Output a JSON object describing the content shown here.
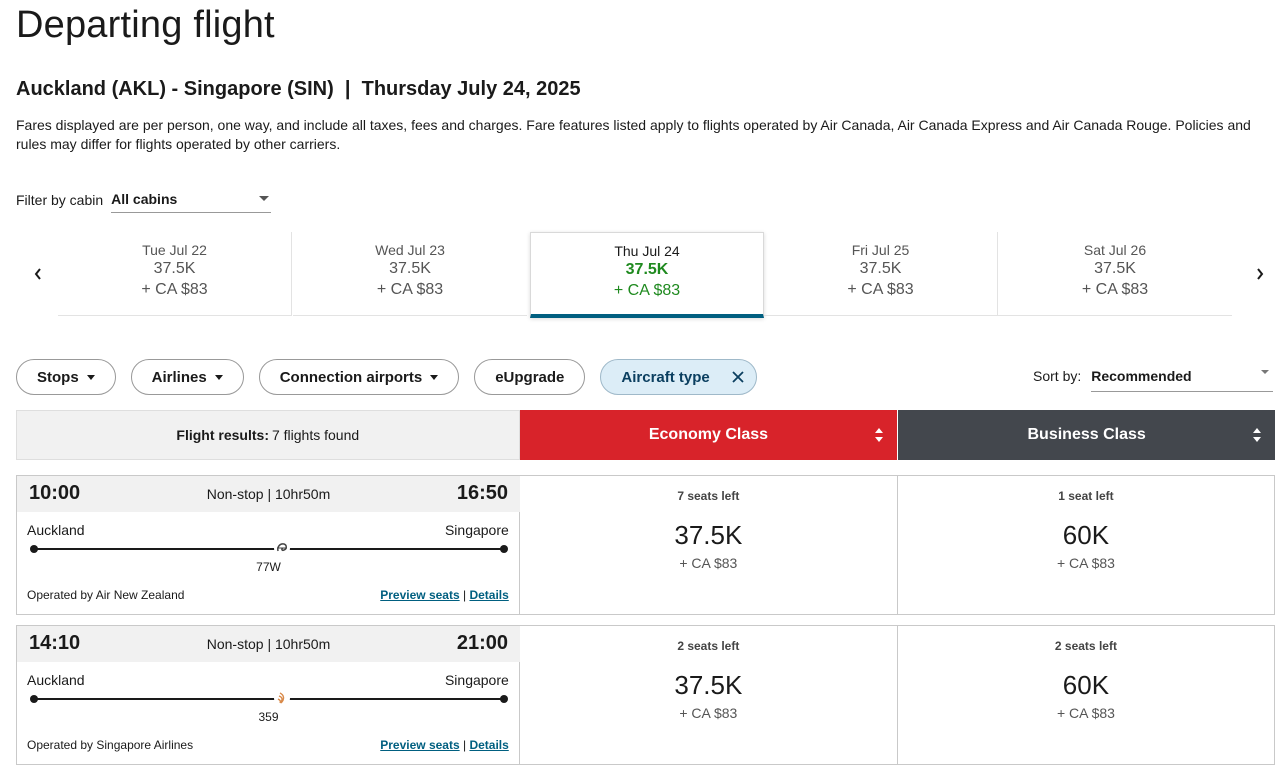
{
  "page": {
    "title": "Departing flight",
    "route": "Auckland (AKL) - Singapore (SIN)  |  Thursday July 24, 2025",
    "disclaimer": "Fares displayed are per person, one way, and include all taxes, fees and charges. Fare features listed apply to flights operated by Air Canada, Air Canada Express and Air Canada Rouge. Policies and rules may differ for flights operated by other carriers."
  },
  "cabin_filter": {
    "label": "Filter by cabin",
    "value": "All cabins"
  },
  "dates": [
    {
      "date": "Tue Jul 22",
      "points": "37.5K",
      "cash": "+ CA $83"
    },
    {
      "date": "Wed Jul 23",
      "points": "37.5K",
      "cash": "+ CA $83"
    },
    {
      "date": "Thu Jul 24",
      "points": "37.5K",
      "cash": "+ CA $83",
      "selected": true
    },
    {
      "date": "Fri Jul 25",
      "points": "37.5K",
      "cash": "+ CA $83"
    },
    {
      "date": "Sat Jul 26",
      "points": "37.5K",
      "cash": "+ CA $83"
    }
  ],
  "filters": {
    "stops": "Stops",
    "airlines": "Airlines",
    "connection_airports": "Connection airports",
    "eupgrade": "eUpgrade",
    "aircraft_type": "Aircraft type"
  },
  "sort": {
    "label": "Sort by:",
    "value": "Recommended"
  },
  "results": {
    "label": "Flight results:",
    "count": "7 flights found",
    "economy_label": "Economy Class",
    "business_label": "Business Class",
    "colors": {
      "economy": "#d8232a",
      "business": "#43474d",
      "accent": "#005f80",
      "selected_price": "#1f8a1f"
    }
  },
  "flights": [
    {
      "depart_time": "10:00",
      "duration": "Non-stop | 10hr50m",
      "arrive_time": "16:50",
      "origin": "Auckland",
      "destination": "Singapore",
      "aircraft": "77W",
      "airline_icon": "air-new-zealand-icon",
      "operated_by": "Operated by Air New Zealand",
      "preview_seats": "Preview seats",
      "details": "Details",
      "economy": {
        "seats": "7 seats left",
        "points": "37.5K",
        "cash": "+ CA $83"
      },
      "business": {
        "seats": "1 seat left",
        "points": "60K",
        "cash": "+ CA $83"
      }
    },
    {
      "depart_time": "14:10",
      "duration": "Non-stop | 10hr50m",
      "arrive_time": "21:00",
      "origin": "Auckland",
      "destination": "Singapore",
      "aircraft": "359",
      "airline_icon": "singapore-airlines-icon",
      "operated_by": "Operated by Singapore Airlines",
      "preview_seats": "Preview seats",
      "details": "Details",
      "economy": {
        "seats": "2 seats left",
        "points": "37.5K",
        "cash": "+ CA $83"
      },
      "business": {
        "seats": "2 seats left",
        "points": "60K",
        "cash": "+ CA $83"
      }
    }
  ]
}
